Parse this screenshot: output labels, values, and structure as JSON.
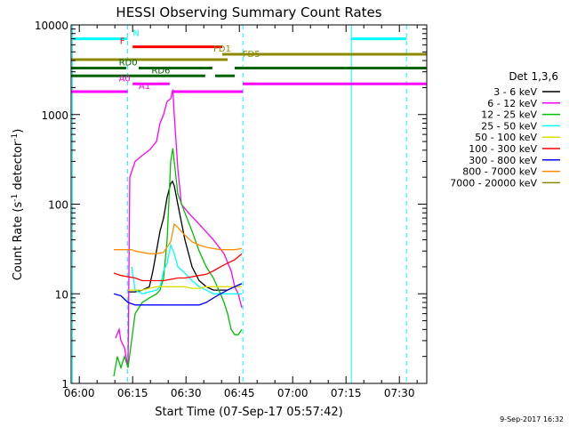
{
  "chart_data": {
    "type": "line",
    "title": "HESSI Observing Summary Count Rates",
    "xlabel": "Start Time (07-Sep-17 05:57:42)",
    "ylabel_main": "Count Rate (s",
    "ylabel_sup1": "-1",
    "ylabel_mid": " detector",
    "ylabel_sup2": "-1",
    "ylabel_end": ")",
    "footer_date": "9-Sep-2017 16:32",
    "legend_title": "Det 1,3,6",
    "x_range_minutes": [
      0,
      100
    ],
    "y_range": [
      1,
      10000
    ],
    "y_scale": "log",
    "x_ticks": [
      {
        "m": 2.3,
        "label": "06:00"
      },
      {
        "m": 17.3,
        "label": "06:15"
      },
      {
        "m": 32.3,
        "label": "06:30"
      },
      {
        "m": 47.3,
        "label": "06:45"
      },
      {
        "m": 62.3,
        "label": "07:00"
      },
      {
        "m": 77.3,
        "label": "07:15"
      },
      {
        "m": 92.3,
        "label": "07:30"
      }
    ],
    "y_ticks": [
      {
        "v": 1,
        "label": "1"
      },
      {
        "v": 10,
        "label": "10"
      },
      {
        "v": 100,
        "label": "100"
      },
      {
        "v": 1000,
        "label": "1000"
      },
      {
        "v": 10000,
        "label": "10000"
      }
    ],
    "series": [
      {
        "name": "3 - 6 keV",
        "color": "#000000",
        "points": [
          [
            16,
            10.5
          ],
          [
            18,
            10.5
          ],
          [
            20,
            11
          ],
          [
            22,
            12
          ],
          [
            23,
            18
          ],
          [
            24,
            30
          ],
          [
            25,
            50
          ],
          [
            26,
            70
          ],
          [
            27,
            120
          ],
          [
            28,
            170
          ],
          [
            28.5,
            180
          ],
          [
            29,
            160
          ],
          [
            30,
            100
          ],
          [
            32,
            40
          ],
          [
            34,
            20
          ],
          [
            36,
            14
          ],
          [
            38,
            12
          ],
          [
            40,
            11
          ],
          [
            42,
            11
          ],
          [
            44,
            11
          ],
          [
            45,
            11.5
          ],
          [
            46,
            12
          ],
          [
            47,
            12.5
          ],
          [
            48,
            13
          ]
        ]
      },
      {
        "name": "6 - 12 keV",
        "color": "#ff00ff",
        "points": [
          [
            12.5,
            3.2
          ],
          [
            13.5,
            4
          ],
          [
            14,
            3
          ],
          [
            15,
            2.5
          ],
          [
            16,
            1.5
          ],
          [
            16.5,
            200
          ],
          [
            18,
            300
          ],
          [
            20,
            350
          ],
          [
            22,
            400
          ],
          [
            24,
            500
          ],
          [
            25,
            800
          ],
          [
            26,
            1000
          ],
          [
            27,
            1400
          ],
          [
            28,
            1500
          ],
          [
            28.6,
            1900
          ],
          [
            29,
            1000
          ],
          [
            30,
            250
          ],
          [
            31,
            100
          ],
          [
            33,
            80
          ],
          [
            36,
            60
          ],
          [
            40,
            40
          ],
          [
            43,
            28
          ],
          [
            45,
            18
          ],
          [
            46,
            12
          ],
          [
            47,
            10
          ],
          [
            48,
            7
          ]
        ]
      },
      {
        "name": "12 - 25 keV",
        "color": "#00c000",
        "points": [
          [
            12,
            1.2
          ],
          [
            13,
            2
          ],
          [
            14,
            1.5
          ],
          [
            15,
            2
          ],
          [
            16,
            1.5
          ],
          [
            17,
            3
          ],
          [
            18,
            6
          ],
          [
            20,
            8
          ],
          [
            22,
            9
          ],
          [
            24,
            10
          ],
          [
            25,
            11
          ],
          [
            26,
            15
          ],
          [
            27,
            40
          ],
          [
            28,
            300
          ],
          [
            28.6,
            420
          ],
          [
            29,
            300
          ],
          [
            30,
            130
          ],
          [
            32,
            80
          ],
          [
            34,
            50
          ],
          [
            36,
            30
          ],
          [
            38,
            20
          ],
          [
            40,
            15
          ],
          [
            42,
            10
          ],
          [
            43,
            8
          ],
          [
            44,
            6
          ],
          [
            45,
            4
          ],
          [
            46,
            3.5
          ],
          [
            47,
            3.5
          ],
          [
            48,
            4
          ]
        ]
      },
      {
        "name": "25 - 50 keV",
        "color": "#00ffff",
        "points": [
          [
            17,
            20
          ],
          [
            18,
            11
          ],
          [
            20,
            10
          ],
          [
            22,
            10.5
          ],
          [
            24,
            11
          ],
          [
            25,
            12
          ],
          [
            26,
            18
          ],
          [
            27,
            22
          ],
          [
            28,
            35
          ],
          [
            29,
            28
          ],
          [
            30,
            20
          ],
          [
            32,
            17
          ],
          [
            34,
            14
          ],
          [
            36,
            12
          ],
          [
            38,
            11
          ],
          [
            40,
            10
          ],
          [
            42,
            10
          ],
          [
            44,
            10
          ],
          [
            46,
            10
          ],
          [
            48,
            10
          ]
        ]
      },
      {
        "name": "50 - 100 keV",
        "color": "#dddd00",
        "points": [
          [
            16,
            11
          ],
          [
            18,
            11
          ],
          [
            20,
            11
          ],
          [
            22,
            11.5
          ],
          [
            24,
            12
          ],
          [
            26,
            12
          ],
          [
            28,
            12
          ],
          [
            30,
            12
          ],
          [
            32,
            12
          ],
          [
            34,
            11.5
          ],
          [
            36,
            11.5
          ],
          [
            38,
            12
          ],
          [
            40,
            12
          ],
          [
            42,
            12
          ],
          [
            44,
            12
          ],
          [
            46,
            12
          ],
          [
            48,
            12
          ]
        ]
      },
      {
        "name": "100 - 300 keV",
        "color": "#ff0000",
        "points": [
          [
            12,
            17
          ],
          [
            14,
            16
          ],
          [
            16,
            15.5
          ],
          [
            18,
            15
          ],
          [
            20,
            14
          ],
          [
            22,
            14
          ],
          [
            24,
            14
          ],
          [
            26,
            14
          ],
          [
            28,
            14.5
          ],
          [
            30,
            15
          ],
          [
            32,
            15
          ],
          [
            34,
            15.5
          ],
          [
            36,
            16
          ],
          [
            38,
            16.5
          ],
          [
            40,
            18
          ],
          [
            42,
            20
          ],
          [
            44,
            22
          ],
          [
            46,
            24
          ],
          [
            48,
            28
          ]
        ]
      },
      {
        "name": "300 - 800 keV",
        "color": "#0000ff",
        "points": [
          [
            12,
            10
          ],
          [
            14,
            9.5
          ],
          [
            16,
            8
          ],
          [
            18,
            7.5
          ],
          [
            20,
            7.5
          ],
          [
            22,
            7.5
          ],
          [
            24,
            7.5
          ],
          [
            26,
            7.5
          ],
          [
            28,
            7.5
          ],
          [
            30,
            7.5
          ],
          [
            32,
            7.5
          ],
          [
            34,
            7.5
          ],
          [
            36,
            7.5
          ],
          [
            38,
            8
          ],
          [
            40,
            9
          ],
          [
            42,
            10
          ],
          [
            44,
            11
          ],
          [
            46,
            12
          ],
          [
            48,
            13
          ]
        ]
      },
      {
        "name": "800 - 7000 keV",
        "color": "#ff8c00",
        "points": [
          [
            12,
            31
          ],
          [
            14,
            31
          ],
          [
            16,
            31
          ],
          [
            17,
            31
          ],
          [
            18,
            30
          ],
          [
            20,
            29
          ],
          [
            22,
            28
          ],
          [
            24,
            28
          ],
          [
            26,
            29
          ],
          [
            28,
            38
          ],
          [
            29,
            60
          ],
          [
            30,
            55
          ],
          [
            32,
            45
          ],
          [
            34,
            38
          ],
          [
            36,
            35
          ],
          [
            38,
            33
          ],
          [
            40,
            32
          ],
          [
            42,
            31
          ],
          [
            44,
            31
          ],
          [
            46,
            31
          ],
          [
            48,
            32
          ]
        ]
      },
      {
        "name": "7000 - 20000 keV",
        "color": "#8b8b00",
        "points": []
      }
    ],
    "vlines": [
      {
        "m": 0.4,
        "style": "solid",
        "color": "#00ffff"
      },
      {
        "m": 15.9,
        "style": "dashed",
        "color": "#00ffff"
      },
      {
        "m": 48.3,
        "style": "dashed",
        "color": "#00ffff"
      },
      {
        "m": 78.8,
        "style": "solid",
        "color": "#00ffff"
      },
      {
        "m": 94.3,
        "style": "dashed",
        "color": "#00ffff"
      }
    ],
    "flag_bars": [
      {
        "label": "N",
        "color": "#00ffff",
        "y": 7000,
        "segments": [
          [
            0.4,
            15.9
          ],
          [
            78.8,
            94.3
          ]
        ],
        "label_m": 17.3
      },
      {
        "label": "F",
        "color": "#ff0000",
        "y": 5700,
        "segments": [
          [
            17.3,
            42.5
          ]
        ],
        "label_m": 13.7
      },
      {
        "label": "FD1",
        "color": "#8b8b00",
        "y": 4700,
        "segments": [
          [
            42.5,
            100
          ]
        ],
        "label_m": 40
      },
      {
        "label": "FD5",
        "color": "#8b8b00",
        "y": 4100,
        "segments": [
          [
            0,
            44
          ]
        ],
        "label_m": 48.2
      },
      {
        "label": "RD0",
        "color": "#006400",
        "y": 3300,
        "segments": [
          [
            0,
            15.5
          ],
          [
            19,
            39.7
          ],
          [
            46,
            100
          ]
        ],
        "label_m": 13.4
      },
      {
        "label": "RD6",
        "color": "#006400",
        "y": 2700,
        "segments": [
          [
            0,
            37.7
          ],
          [
            40.5,
            46
          ]
        ],
        "label_m": 22.6
      },
      {
        "label": "A0",
        "color": "#ff00ff",
        "y": 2200,
        "segments": [
          [
            17.3,
            27.7
          ],
          [
            48.3,
            100
          ]
        ],
        "label_m": 13.4
      },
      {
        "label": "A1",
        "color": "#ff00ff",
        "y": 1800,
        "segments": [
          [
            0,
            15.9
          ],
          [
            28.5,
            48.3
          ]
        ],
        "label_m": 19
      }
    ]
  }
}
